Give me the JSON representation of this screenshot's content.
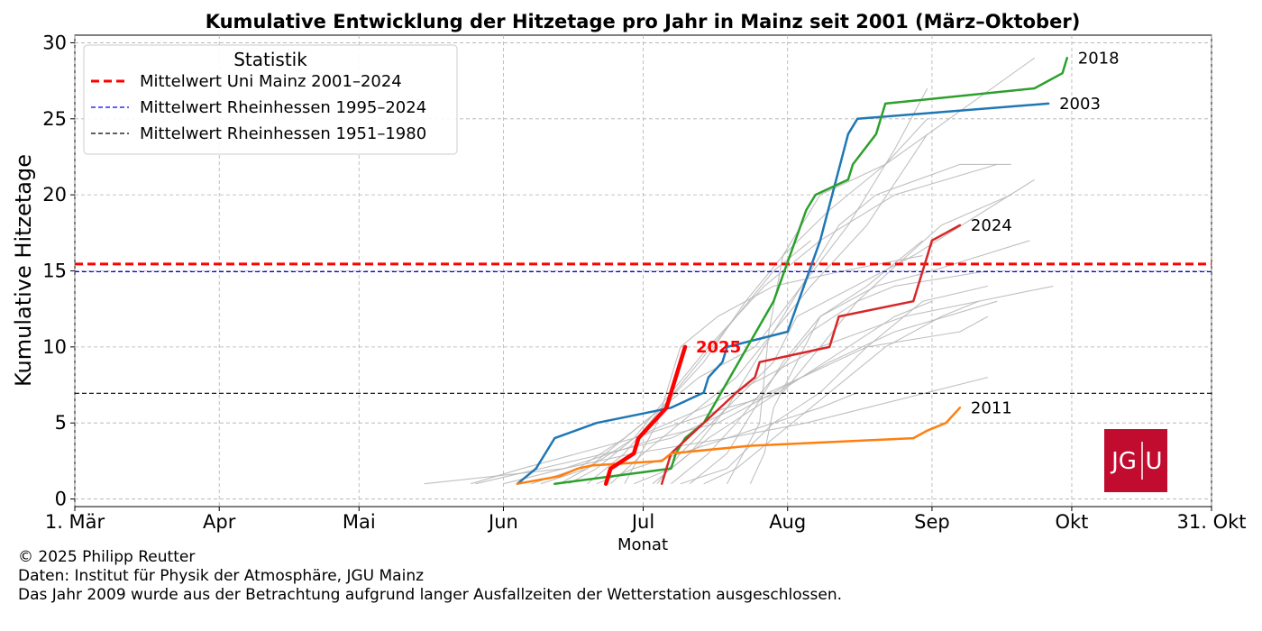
{
  "chart_data": {
    "type": "line",
    "title": "Kumulative Entwicklung der Hitzetage pro Jahr in Mainz seit 2001 (März–Oktober)",
    "xlabel": "Monat",
    "ylabel": "Kumulative Hitzetage",
    "xlim": [
      0,
      244
    ],
    "ylim": [
      -0.5,
      30.5
    ],
    "x_unit": "days since 1 March",
    "x_ticks": [
      {
        "x": 0,
        "label": "1. Mär"
      },
      {
        "x": 31,
        "label": "Apr"
      },
      {
        "x": 61,
        "label": "Mai"
      },
      {
        "x": 92,
        "label": "Jun"
      },
      {
        "x": 122,
        "label": "Jul"
      },
      {
        "x": 153,
        "label": "Aug"
      },
      {
        "x": 184,
        "label": "Sep"
      },
      {
        "x": 214,
        "label": "Okt"
      },
      {
        "x": 244,
        "label": "31. Okt"
      }
    ],
    "y_ticks": [
      0,
      5,
      10,
      15,
      20,
      25,
      30
    ],
    "grid": true,
    "legend": {
      "title": "Statistik",
      "position": "top-left",
      "entries": [
        {
          "label": "Mittelwert Uni Mainz 2001–2024",
          "color": "#ff0000",
          "dashed": true,
          "thick": true
        },
        {
          "label": "Mittelwert Rheinhessen 1995–2024",
          "color": "#0000ff",
          "dashed": true,
          "thick": false
        },
        {
          "label": "Mittelwert Rheinhessen 1951–1980",
          "color": "#000000",
          "dashed": true,
          "thick": false
        }
      ]
    },
    "reference_lines": [
      {
        "name": "Mittelwert Uni Mainz 2001–2024",
        "y": 15.45,
        "color": "#ff0000",
        "width": 3
      },
      {
        "name": "Mittelwert Rheinhessen 1995–2024",
        "y": 14.95,
        "color": "#0000ff",
        "width": 1.2
      },
      {
        "name": "Mittelwert Rheinhessen 1951–1980",
        "y": 6.95,
        "color": "#000000",
        "width": 1.2
      }
    ],
    "highlight_series": [
      {
        "name": "2003",
        "label": "2003",
        "color": "#1f77b4",
        "width": 2.5,
        "points": [
          [
            95,
            1
          ],
          [
            99,
            2
          ],
          [
            103,
            4
          ],
          [
            112,
            5
          ],
          [
            120,
            5.5
          ],
          [
            128,
            6
          ],
          [
            135,
            7
          ],
          [
            136,
            8
          ],
          [
            139,
            9
          ],
          [
            140,
            10
          ],
          [
            153,
            11
          ],
          [
            160,
            17
          ],
          [
            166,
            24
          ],
          [
            168,
            25
          ],
          [
            209,
            26
          ]
        ]
      },
      {
        "name": "2018",
        "label": "2018",
        "color": "#2ca02c",
        "width": 2.5,
        "points": [
          [
            103,
            1
          ],
          [
            128,
            2
          ],
          [
            129,
            3
          ],
          [
            131,
            4
          ],
          [
            135,
            5
          ],
          [
            150,
            13
          ],
          [
            157,
            19
          ],
          [
            159,
            20
          ],
          [
            166,
            21
          ],
          [
            167,
            22
          ],
          [
            172,
            24
          ],
          [
            174,
            26
          ],
          [
            206,
            27
          ],
          [
            212,
            28
          ],
          [
            213,
            29
          ]
        ]
      },
      {
        "name": "2024",
        "label": "2024",
        "color": "#d62728",
        "width": 2.5,
        "points": [
          [
            126,
            1
          ],
          [
            127,
            2
          ],
          [
            128,
            3
          ],
          [
            142,
            7
          ],
          [
            146,
            8
          ],
          [
            147,
            9
          ],
          [
            162,
            10
          ],
          [
            164,
            12
          ],
          [
            180,
            13
          ],
          [
            181,
            14
          ],
          [
            182,
            15
          ],
          [
            183,
            16
          ],
          [
            184,
            17
          ],
          [
            190,
            18
          ]
        ]
      },
      {
        "name": "2011",
        "label": "2011",
        "color": "#ff7f0e",
        "width": 2.5,
        "points": [
          [
            95,
            1
          ],
          [
            104,
            1.5
          ],
          [
            108,
            2
          ],
          [
            111,
            2.2
          ],
          [
            126,
            2.5
          ],
          [
            128,
            3
          ],
          [
            145,
            3.5
          ],
          [
            180,
            4
          ],
          [
            183,
            4.5
          ],
          [
            187,
            5
          ],
          [
            190,
            6
          ]
        ]
      },
      {
        "name": "2025",
        "label": "2025",
        "color": "#ff0000",
        "width": 4.5,
        "bold_label": true,
        "points": [
          [
            114,
            1
          ],
          [
            115,
            2
          ],
          [
            120,
            3
          ],
          [
            121,
            4
          ],
          [
            127,
            6
          ],
          [
            131,
            10
          ]
        ]
      }
    ],
    "background_series": [
      [
        [
          118,
          1
        ],
        [
          125,
          5
        ],
        [
          128,
          8
        ],
        [
          130,
          10
        ],
        [
          138,
          12
        ],
        [
          150,
          14
        ],
        [
          165,
          15
        ],
        [
          182,
          16
        ]
      ],
      [
        [
          145,
          1
        ],
        [
          148,
          3
        ],
        [
          150,
          6
        ],
        [
          155,
          9
        ],
        [
          160,
          12
        ],
        [
          170,
          14
        ],
        [
          182,
          17
        ]
      ],
      [
        [
          125,
          1
        ],
        [
          130,
          3
        ],
        [
          140,
          6
        ],
        [
          152,
          7
        ],
        [
          160,
          10
        ],
        [
          168,
          13
        ],
        [
          175,
          15
        ],
        [
          186,
          18
        ],
        [
          201,
          20
        ]
      ],
      [
        [
          100,
          1
        ],
        [
          110,
          2
        ],
        [
          120,
          4
        ],
        [
          140,
          6
        ],
        [
          150,
          9
        ],
        [
          155,
          12
        ],
        [
          180,
          16
        ],
        [
          206,
          21
        ]
      ],
      [
        [
          130,
          1
        ],
        [
          140,
          2
        ],
        [
          150,
          5
        ],
        [
          160,
          7
        ],
        [
          170,
          10
        ],
        [
          182,
          13
        ],
        [
          196,
          14
        ]
      ],
      [
        [
          92,
          1
        ],
        [
          105,
          2
        ],
        [
          115,
          3
        ],
        [
          125,
          4
        ],
        [
          138,
          5
        ],
        [
          150,
          7
        ],
        [
          162,
          9
        ],
        [
          176,
          11
        ],
        [
          198,
          13
        ]
      ],
      [
        [
          85,
          1
        ],
        [
          96,
          2
        ],
        [
          108,
          3
        ],
        [
          120,
          4
        ],
        [
          135,
          6
        ],
        [
          148,
          8
        ],
        [
          160,
          10
        ],
        [
          178,
          12
        ],
        [
          210,
          14
        ]
      ],
      [
        [
          110,
          1
        ],
        [
          118,
          3
        ],
        [
          126,
          6
        ],
        [
          135,
          9
        ],
        [
          144,
          13
        ],
        [
          152,
          16
        ],
        [
          162,
          19
        ],
        [
          174,
          22
        ],
        [
          183,
          25
        ]
      ],
      [
        [
          75,
          1
        ],
        [
          90,
          1.5
        ],
        [
          105,
          2
        ],
        [
          120,
          3
        ],
        [
          140,
          4
        ],
        [
          157,
          5
        ],
        [
          170,
          6
        ],
        [
          196,
          8
        ]
      ],
      [
        [
          115,
          1
        ],
        [
          122,
          3
        ],
        [
          130,
          5
        ],
        [
          142,
          8
        ],
        [
          150,
          11
        ],
        [
          158,
          14
        ],
        [
          170,
          18
        ],
        [
          183,
          24
        ]
      ],
      [
        [
          140,
          1
        ],
        [
          147,
          5
        ],
        [
          149,
          11
        ],
        [
          152,
          16
        ],
        [
          160,
          20
        ],
        [
          174,
          22
        ],
        [
          206,
          29
        ]
      ],
      [
        [
          104,
          1
        ],
        [
          110,
          2
        ],
        [
          118,
          4
        ],
        [
          126,
          6
        ],
        [
          134,
          8
        ],
        [
          146,
          10
        ],
        [
          156,
          14
        ],
        [
          166,
          18
        ],
        [
          176,
          23
        ],
        [
          183,
          27
        ]
      ],
      [
        [
          128,
          1
        ],
        [
          136,
          3
        ],
        [
          142,
          5
        ],
        [
          150,
          8
        ],
        [
          158,
          11
        ],
        [
          168,
          13
        ],
        [
          176,
          14
        ],
        [
          196,
          15
        ]
      ],
      [
        [
          120,
          1
        ],
        [
          128,
          2
        ],
        [
          136,
          4
        ],
        [
          146,
          6
        ],
        [
          156,
          8
        ],
        [
          166,
          10
        ],
        [
          176,
          12
        ],
        [
          184,
          13
        ]
      ],
      [
        [
          106,
          1
        ],
        [
          112,
          2
        ],
        [
          120,
          4
        ],
        [
          128,
          7
        ],
        [
          136,
          10
        ],
        [
          148,
          14
        ],
        [
          160,
          17
        ],
        [
          176,
          20
        ],
        [
          198,
          22
        ]
      ],
      [
        [
          98,
          1
        ],
        [
          108,
          2
        ],
        [
          118,
          4
        ],
        [
          126,
          6
        ],
        [
          134,
          9
        ],
        [
          142,
          12
        ],
        [
          150,
          15
        ],
        [
          158,
          17
        ]
      ],
      [
        [
          135,
          1
        ],
        [
          142,
          2
        ],
        [
          150,
          4
        ],
        [
          158,
          6
        ],
        [
          166,
          8
        ],
        [
          174,
          10
        ],
        [
          186,
          12
        ],
        [
          194,
          13
        ]
      ],
      [
        [
          86,
          1
        ],
        [
          100,
          2
        ],
        [
          114,
          3
        ],
        [
          128,
          4
        ],
        [
          142,
          6
        ],
        [
          156,
          8
        ],
        [
          170,
          10
        ],
        [
          190,
          11
        ],
        [
          196,
          12
        ]
      ],
      [
        [
          124,
          1
        ],
        [
          132,
          3
        ],
        [
          140,
          6
        ],
        [
          148,
          10
        ],
        [
          156,
          14
        ],
        [
          164,
          18
        ],
        [
          172,
          20
        ],
        [
          190,
          22
        ],
        [
          201,
          22
        ]
      ],
      [
        [
          112,
          1
        ],
        [
          120,
          2
        ],
        [
          130,
          3
        ],
        [
          140,
          4
        ],
        [
          150,
          5
        ],
        [
          160,
          6
        ],
        [
          168,
          7
        ]
      ],
      [
        [
          132,
          1
        ],
        [
          140,
          3
        ],
        [
          146,
          6
        ],
        [
          152,
          9
        ],
        [
          160,
          12
        ],
        [
          172,
          14
        ],
        [
          184,
          15
        ],
        [
          205,
          17
        ]
      ]
    ]
  },
  "logo": {
    "text_left": "JG",
    "text_right": "U",
    "color": "#c10c2f"
  },
  "footer": {
    "copyright": "© 2025 Philipp Reutter",
    "source": "Daten: Institut für Physik der Atmosphäre, JGU Mainz",
    "note": "Das Jahr 2009 wurde aus der Betrachtung aufgrund langer Ausfallzeiten der Wetterstation ausgeschlossen."
  }
}
